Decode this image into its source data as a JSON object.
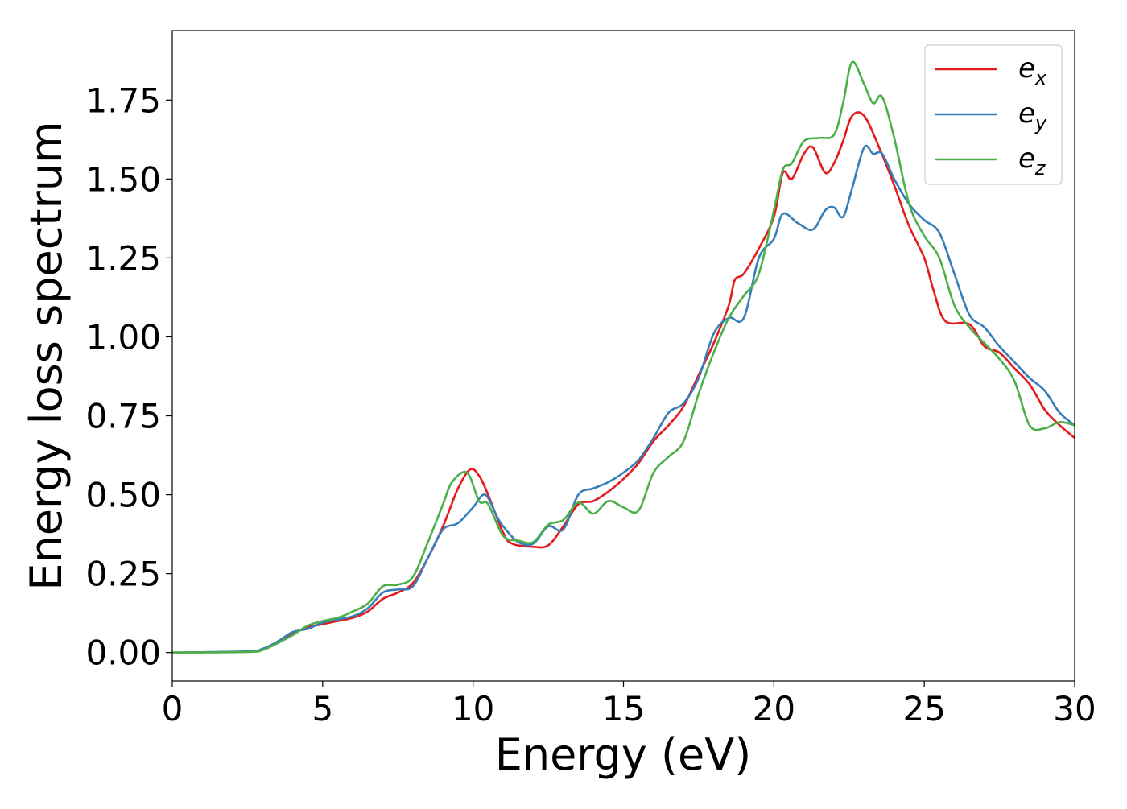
{
  "chart_data": {
    "type": "line",
    "title": "",
    "xlabel": "Energy (eV)",
    "ylabel": "Energy loss spectrum",
    "xlim": [
      0,
      30
    ],
    "ylim": [
      -0.09,
      1.97
    ],
    "xticks": [
      0,
      5,
      10,
      15,
      20,
      25,
      30
    ],
    "xtick_labels": [
      "0",
      "5",
      "10",
      "15",
      "20",
      "25",
      "30"
    ],
    "yticks": [
      0,
      0.25,
      0.5,
      0.75,
      1.0,
      1.25,
      1.5,
      1.75
    ],
    "ytick_labels": [
      "0.00",
      "0.25",
      "0.50",
      "0.75",
      "1.00",
      "1.25",
      "1.50",
      "1.75"
    ],
    "grid": false,
    "legend_position": "top-right",
    "series": [
      {
        "name": "e_x",
        "label_base": "e",
        "label_sub": "x",
        "color": "#e41a1c",
        "points": [
          [
            0,
            0
          ],
          [
            2.5,
            0.003
          ],
          [
            3,
            0.01
          ],
          [
            3.5,
            0.03
          ],
          [
            4,
            0.06
          ],
          [
            4.5,
            0.08
          ],
          [
            5,
            0.09
          ],
          [
            5.5,
            0.1
          ],
          [
            6,
            0.11
          ],
          [
            6.5,
            0.13
          ],
          [
            7,
            0.17
          ],
          [
            7.5,
            0.19
          ],
          [
            8,
            0.22
          ],
          [
            8.5,
            0.3
          ],
          [
            9,
            0.4
          ],
          [
            9.5,
            0.52
          ],
          [
            9.9,
            0.58
          ],
          [
            10.2,
            0.56
          ],
          [
            10.5,
            0.5
          ],
          [
            11,
            0.38
          ],
          [
            11.3,
            0.345
          ],
          [
            12,
            0.335
          ],
          [
            12.5,
            0.34
          ],
          [
            13,
            0.4
          ],
          [
            13.5,
            0.47
          ],
          [
            14,
            0.48
          ],
          [
            14.5,
            0.51
          ],
          [
            15,
            0.55
          ],
          [
            15.5,
            0.6
          ],
          [
            16,
            0.67
          ],
          [
            16.5,
            0.72
          ],
          [
            17,
            0.78
          ],
          [
            17.5,
            0.88
          ],
          [
            18,
            0.98
          ],
          [
            18.5,
            1.1
          ],
          [
            18.7,
            1.18
          ],
          [
            19,
            1.2
          ],
          [
            19.5,
            1.28
          ],
          [
            20,
            1.38
          ],
          [
            20.3,
            1.52
          ],
          [
            20.6,
            1.5
          ],
          [
            21,
            1.58
          ],
          [
            21.3,
            1.6
          ],
          [
            21.7,
            1.52
          ],
          [
            22,
            1.55
          ],
          [
            22.3,
            1.62
          ],
          [
            22.6,
            1.7
          ],
          [
            23,
            1.7
          ],
          [
            23.5,
            1.6
          ],
          [
            24,
            1.48
          ],
          [
            24.5,
            1.35
          ],
          [
            25,
            1.25
          ],
          [
            25.3,
            1.15
          ],
          [
            25.7,
            1.05
          ],
          [
            26.5,
            1.04
          ],
          [
            27,
            0.97
          ],
          [
            27.5,
            0.95
          ],
          [
            28,
            0.9
          ],
          [
            28.5,
            0.85
          ],
          [
            29,
            0.77
          ],
          [
            29.5,
            0.72
          ],
          [
            30,
            0.68
          ]
        ]
      },
      {
        "name": "e_y",
        "label_base": "e",
        "label_sub": "y",
        "color": "#377eb8",
        "points": [
          [
            0,
            0
          ],
          [
            2.5,
            0.004
          ],
          [
            3,
            0.012
          ],
          [
            3.5,
            0.035
          ],
          [
            4,
            0.065
          ],
          [
            4.5,
            0.075
          ],
          [
            5,
            0.095
          ],
          [
            5.5,
            0.105
          ],
          [
            6,
            0.115
          ],
          [
            6.5,
            0.14
          ],
          [
            7,
            0.19
          ],
          [
            7.5,
            0.2
          ],
          [
            8,
            0.21
          ],
          [
            8.5,
            0.3
          ],
          [
            9,
            0.39
          ],
          [
            9.5,
            0.41
          ],
          [
            10,
            0.46
          ],
          [
            10.4,
            0.5
          ],
          [
            10.8,
            0.43
          ],
          [
            11,
            0.4
          ],
          [
            11.5,
            0.35
          ],
          [
            12,
            0.345
          ],
          [
            12.5,
            0.4
          ],
          [
            13,
            0.39
          ],
          [
            13.5,
            0.5
          ],
          [
            14,
            0.52
          ],
          [
            14.5,
            0.54
          ],
          [
            15,
            0.57
          ],
          [
            15.5,
            0.61
          ],
          [
            16,
            0.68
          ],
          [
            16.5,
            0.76
          ],
          [
            17,
            0.79
          ],
          [
            17.5,
            0.87
          ],
          [
            18,
            1.01
          ],
          [
            18.5,
            1.06
          ],
          [
            19,
            1.06
          ],
          [
            19.5,
            1.25
          ],
          [
            20,
            1.31
          ],
          [
            20.3,
            1.39
          ],
          [
            20.8,
            1.36
          ],
          [
            21.3,
            1.34
          ],
          [
            21.7,
            1.4
          ],
          [
            22,
            1.41
          ],
          [
            22.3,
            1.38
          ],
          [
            22.6,
            1.47
          ],
          [
            23,
            1.6
          ],
          [
            23.3,
            1.58
          ],
          [
            23.6,
            1.58
          ],
          [
            24,
            1.5
          ],
          [
            24.5,
            1.42
          ],
          [
            25,
            1.37
          ],
          [
            25.5,
            1.33
          ],
          [
            26,
            1.2
          ],
          [
            26.5,
            1.07
          ],
          [
            27,
            1.03
          ],
          [
            27.5,
            0.97
          ],
          [
            28,
            0.92
          ],
          [
            28.5,
            0.87
          ],
          [
            29,
            0.83
          ],
          [
            29.5,
            0.76
          ],
          [
            30,
            0.72
          ]
        ]
      },
      {
        "name": "e_z",
        "label_base": "e",
        "label_sub": "z",
        "color": "#4daf4a",
        "points": [
          [
            0,
            0
          ],
          [
            2.5,
            0.002
          ],
          [
            3,
            0.008
          ],
          [
            3.5,
            0.03
          ],
          [
            4,
            0.055
          ],
          [
            4.5,
            0.085
          ],
          [
            5,
            0.1
          ],
          [
            5.5,
            0.11
          ],
          [
            6,
            0.13
          ],
          [
            6.5,
            0.155
          ],
          [
            7,
            0.21
          ],
          [
            7.5,
            0.215
          ],
          [
            8,
            0.24
          ],
          [
            8.5,
            0.35
          ],
          [
            9,
            0.47
          ],
          [
            9.3,
            0.54
          ],
          [
            9.8,
            0.57
          ],
          [
            10.2,
            0.48
          ],
          [
            10.5,
            0.47
          ],
          [
            11,
            0.37
          ],
          [
            11.5,
            0.355
          ],
          [
            12,
            0.35
          ],
          [
            12.5,
            0.405
          ],
          [
            13,
            0.42
          ],
          [
            13.5,
            0.475
          ],
          [
            14,
            0.44
          ],
          [
            14.5,
            0.48
          ],
          [
            15,
            0.46
          ],
          [
            15.5,
            0.45
          ],
          [
            16,
            0.57
          ],
          [
            16.5,
            0.62
          ],
          [
            17,
            0.67
          ],
          [
            17.5,
            0.82
          ],
          [
            18,
            0.95
          ],
          [
            18.5,
            1.06
          ],
          [
            19,
            1.13
          ],
          [
            19.5,
            1.2
          ],
          [
            20,
            1.4
          ],
          [
            20.3,
            1.53
          ],
          [
            20.6,
            1.55
          ],
          [
            21,
            1.62
          ],
          [
            21.5,
            1.63
          ],
          [
            22,
            1.64
          ],
          [
            22.3,
            1.74
          ],
          [
            22.6,
            1.87
          ],
          [
            23,
            1.8
          ],
          [
            23.3,
            1.74
          ],
          [
            23.6,
            1.76
          ],
          [
            24,
            1.63
          ],
          [
            24.5,
            1.42
          ],
          [
            25,
            1.32
          ],
          [
            25.5,
            1.25
          ],
          [
            26,
            1.1
          ],
          [
            26.5,
            1.03
          ],
          [
            27,
            0.98
          ],
          [
            27.5,
            0.93
          ],
          [
            28,
            0.86
          ],
          [
            28.5,
            0.72
          ],
          [
            29,
            0.71
          ],
          [
            29.5,
            0.73
          ],
          [
            30,
            0.72
          ]
        ]
      }
    ]
  }
}
